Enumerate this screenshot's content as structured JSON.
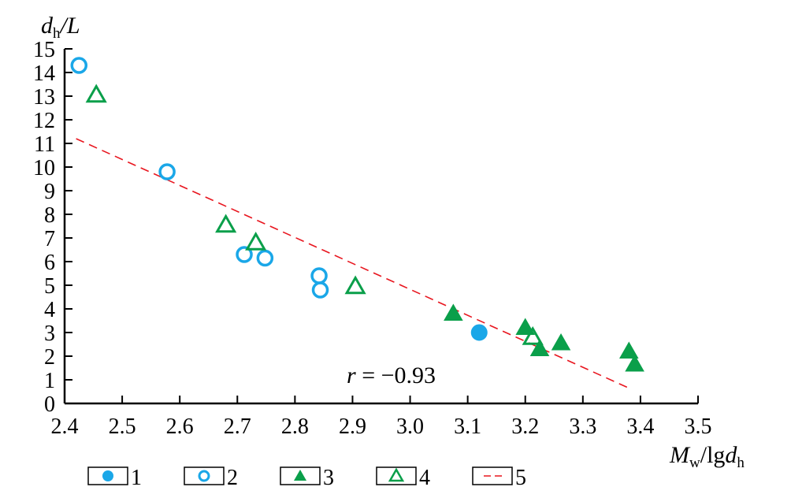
{
  "chart_data": {
    "type": "scatter",
    "xlabel": {
      "main": "M",
      "sub": "w",
      "mid": "/lg",
      "main2": "d",
      "sub2": "h"
    },
    "ylabel": {
      "main": "d",
      "sub": "h",
      "rest": "/L"
    },
    "xlim": [
      2.4,
      3.5
    ],
    "ylim": [
      0,
      15
    ],
    "x_ticks": [
      "2.4",
      "2.5",
      "2.6",
      "2.7",
      "2.8",
      "2.9",
      "3.0",
      "3.1",
      "3.2",
      "3.3",
      "3.4",
      "3.5"
    ],
    "y_ticks": [
      "0",
      "1",
      "2",
      "3",
      "4",
      "5",
      "6",
      "7",
      "8",
      "9",
      "10",
      "11",
      "12",
      "13",
      "14",
      "15"
    ],
    "grid": false,
    "series": [
      {
        "name": "1",
        "marker": "filled-circle",
        "color": "#1aa7e8",
        "points": [
          [
            3.12,
            3.0
          ]
        ]
      },
      {
        "name": "2",
        "marker": "open-circle",
        "color": "#1aa7e8",
        "points": [
          [
            2.425,
            14.3
          ],
          [
            2.578,
            9.8
          ],
          [
            2.712,
            6.3
          ],
          [
            2.748,
            6.15
          ],
          [
            2.842,
            5.4
          ],
          [
            2.844,
            4.8
          ]
        ]
      },
      {
        "name": "3",
        "marker": "filled-triangle",
        "color": "#0a9f4a",
        "points": [
          [
            3.075,
            3.8
          ],
          [
            3.2,
            3.2
          ],
          [
            3.225,
            2.3
          ],
          [
            3.262,
            2.55
          ],
          [
            3.38,
            2.2
          ],
          [
            3.39,
            1.65
          ]
        ]
      },
      {
        "name": "4",
        "marker": "open-triangle",
        "color": "#0a9f4a",
        "points": [
          [
            2.455,
            13.05
          ],
          [
            2.68,
            7.55
          ],
          [
            2.732,
            6.8
          ],
          [
            2.905,
            4.95
          ],
          [
            3.213,
            2.8
          ]
        ]
      },
      {
        "name": "5",
        "marker": "dashed-line",
        "color": "#e8161f",
        "line": {
          "x1": 2.42,
          "y1": 11.2,
          "x2": 3.38,
          "y2": 0.65
        }
      }
    ],
    "annotation": {
      "var": "r",
      "text": " = −0.93"
    }
  }
}
